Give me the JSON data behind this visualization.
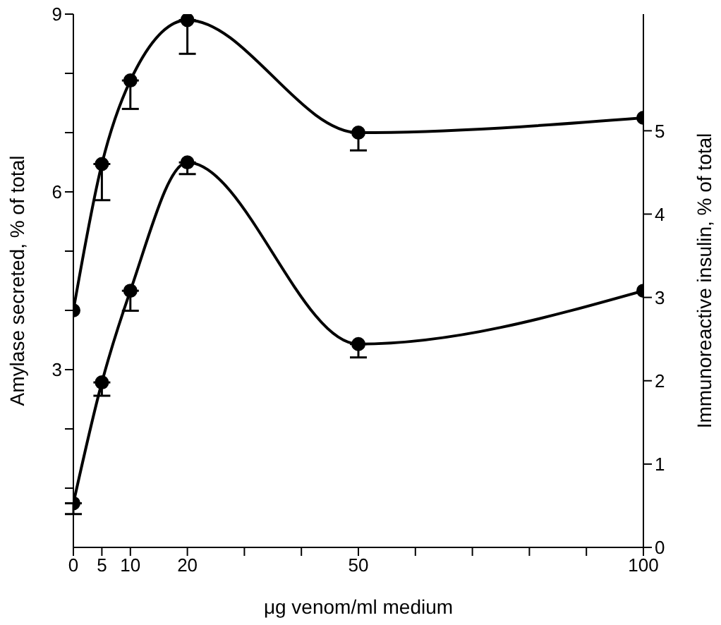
{
  "chart_data": {
    "type": "line",
    "xlabel": "μg venom/ml medium",
    "ylabel": "Amylase secreted,   % of total",
    "y2label": "Immunoreactive insulin,   % of total",
    "x": [
      0,
      5,
      10,
      20,
      50,
      100
    ],
    "series": [
      {
        "color": "#000000",
        "values": [
          4.0,
          6.47,
          7.88,
          8.9,
          7.0,
          7.25
        ],
        "errors": [
          null,
          [
            5.86,
            6.47
          ],
          [
            7.4,
            7.88
          ],
          [
            8.33,
            8.9
          ],
          [
            6.7,
            7.0
          ],
          null
        ]
      },
      {
        "color": "#000000",
        "axis": "y2",
        "values": [
          0.53,
          1.98,
          3.08,
          4.62,
          2.44,
          3.08
        ],
        "errors": [
          [
            0.4,
            0.53
          ],
          [
            1.82,
            1.98
          ],
          [
            2.84,
            3.08
          ],
          [
            4.48,
            4.62
          ],
          [
            2.28,
            2.44
          ],
          null
        ]
      }
    ],
    "xlim": [
      0,
      100
    ],
    "xticks": [
      0,
      5,
      10,
      20,
      {
        "value": 30,
        "label": null
      },
      {
        "value": 40,
        "label": null
      },
      50,
      {
        "value": 60,
        "label": null
      },
      {
        "value": 70,
        "label": null
      },
      {
        "value": 80,
        "label": null
      },
      {
        "value": 90,
        "label": null
      },
      100
    ],
    "ylim": [
      0,
      9
    ],
    "yticks": [
      {
        "value": 1,
        "label": null
      },
      {
        "value": 2,
        "label": null
      },
      3,
      {
        "value": 4,
        "label": null
      },
      {
        "value": 5,
        "label": null
      },
      6,
      {
        "value": 7,
        "label": null
      },
      {
        "value": 8,
        "label": null
      },
      9
    ],
    "y2lim": [
      0,
      6.4
    ],
    "y2ticks": [
      0,
      1,
      2,
      3,
      4,
      5
    ],
    "marker": "circle",
    "line_style": "solid",
    "grid": false,
    "legend": false
  }
}
